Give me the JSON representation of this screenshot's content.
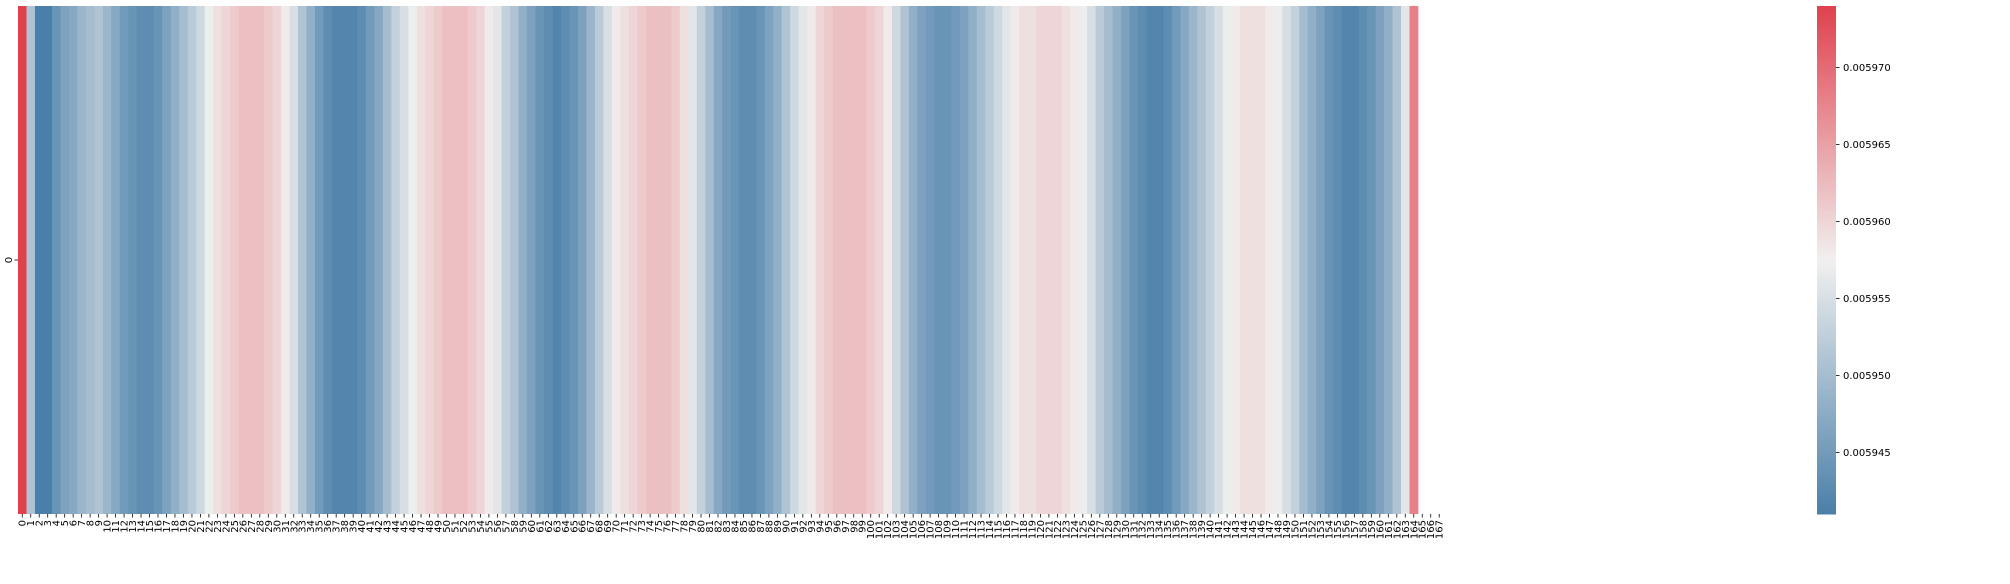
{
  "chart_data": {
    "type": "heatmap",
    "title": "",
    "xlabel": "",
    "ylabel": "",
    "x_tick_labels": [
      "0",
      "1",
      "2",
      "3",
      "4",
      "5",
      "6",
      "7",
      "8",
      "9",
      "10",
      "11",
      "12",
      "13",
      "14",
      "15",
      "16",
      "17",
      "18",
      "19",
      "20",
      "21",
      "22",
      "23",
      "24",
      "25",
      "26",
      "27",
      "28",
      "29",
      "30",
      "31",
      "32",
      "33",
      "34",
      "35",
      "36",
      "37",
      "38",
      "39",
      "40",
      "41",
      "42",
      "43",
      "44",
      "45",
      "46",
      "47",
      "48",
      "49",
      "50",
      "51",
      "52",
      "53",
      "54",
      "55",
      "56",
      "57",
      "58",
      "59",
      "60",
      "61",
      "62",
      "63",
      "64",
      "65",
      "66",
      "67",
      "68",
      "69",
      "70",
      "71",
      "72",
      "73",
      "74",
      "75",
      "76",
      "77",
      "78",
      "79",
      "80",
      "81",
      "82",
      "83",
      "84",
      "85",
      "86",
      "87",
      "88",
      "89",
      "90",
      "91",
      "92",
      "93",
      "94",
      "95",
      "96",
      "97",
      "98",
      "99",
      "100",
      "101",
      "102",
      "103",
      "104",
      "105",
      "106",
      "107",
      "108",
      "109",
      "110",
      "111",
      "112",
      "113",
      "114",
      "115",
      "116",
      "117",
      "118",
      "119",
      "120",
      "121",
      "122",
      "123",
      "124",
      "125",
      "126",
      "127",
      "128",
      "129",
      "130",
      "131",
      "132",
      "133",
      "134",
      "135",
      "136",
      "137",
      "138",
      "139",
      "140",
      "141",
      "142",
      "143",
      "144",
      "145",
      "146",
      "147",
      "148",
      "149",
      "150",
      "151",
      "152",
      "153",
      "154",
      "155",
      "156",
      "157",
      "158",
      "159",
      "160",
      "161",
      "162",
      "163",
      "164",
      "165",
      "166",
      "167"
    ],
    "y_tick_labels": [
      "0"
    ],
    "values": [
      [
        0.005974,
        0.005951,
        0.005941,
        0.005941,
        0.005944,
        0.005946,
        0.005947,
        0.005949,
        0.00595,
        0.005951,
        0.005949,
        0.005947,
        0.005945,
        0.005944,
        0.005943,
        0.005943,
        0.005944,
        0.005946,
        0.005948,
        0.00595,
        0.005952,
        0.005954,
        0.005957,
        0.005959,
        0.00596,
        0.005961,
        0.005962,
        0.005962,
        0.005962,
        0.005961,
        0.00596,
        0.005958,
        0.005955,
        0.005951,
        0.005948,
        0.005945,
        0.005943,
        0.005942,
        0.005942,
        0.005942,
        0.005943,
        0.005945,
        0.005947,
        0.00595,
        0.005953,
        0.005955,
        0.005957,
        0.005959,
        0.00596,
        0.005961,
        0.005962,
        0.005962,
        0.005962,
        0.005961,
        0.00596,
        0.005958,
        0.005956,
        0.005953,
        0.005951,
        0.005948,
        0.005946,
        0.005944,
        0.005943,
        0.005942,
        0.005943,
        0.005944,
        0.005946,
        0.005949,
        0.005952,
        0.005955,
        0.005958,
        0.005959,
        0.00596,
        0.005961,
        0.005962,
        0.005962,
        0.005962,
        0.005961,
        0.005959,
        0.005956,
        0.005953,
        0.00595,
        0.005947,
        0.005945,
        0.005944,
        0.005943,
        0.005943,
        0.005944,
        0.005946,
        0.005948,
        0.005951,
        0.005954,
        0.005956,
        0.005958,
        0.00596,
        0.005961,
        0.005962,
        0.005962,
        0.005962,
        0.005962,
        0.005961,
        0.00596,
        0.005958,
        0.005954,
        0.005951,
        0.005948,
        0.005946,
        0.005945,
        0.005944,
        0.005944,
        0.005945,
        0.005946,
        0.005948,
        0.00595,
        0.005952,
        0.005954,
        0.005956,
        0.005958,
        0.005959,
        0.005959,
        0.00596,
        0.00596,
        0.00596,
        0.005959,
        0.005958,
        0.005957,
        0.005955,
        0.005952,
        0.00595,
        0.005948,
        0.005946,
        0.005944,
        0.005943,
        0.005942,
        0.005942,
        0.005943,
        0.005945,
        0.005947,
        0.005949,
        0.005951,
        0.005953,
        0.005955,
        0.005957,
        0.005958,
        0.005959,
        0.005959,
        0.005959,
        0.005958,
        0.005957,
        0.005955,
        0.005953,
        0.00595,
        0.005948,
        0.005946,
        0.005944,
        0.005943,
        0.005942,
        0.005942,
        0.005943,
        0.005944,
        0.005946,
        0.005948,
        0.005951,
        0.005956,
        0.005968
      ]
    ],
    "colorbar": {
      "min": 0.005941,
      "max": 0.005974,
      "tick_values": [
        0.005945,
        0.00595,
        0.005955,
        0.00596,
        0.005965,
        0.00597
      ],
      "tick_labels": [
        "0.005945",
        "0.005950",
        "0.005955",
        "0.005960",
        "0.005965",
        "0.005970"
      ]
    },
    "colors": {
      "low": "#4a7fa9",
      "mid": "#f1f0ef",
      "high": "#e0414f"
    }
  }
}
